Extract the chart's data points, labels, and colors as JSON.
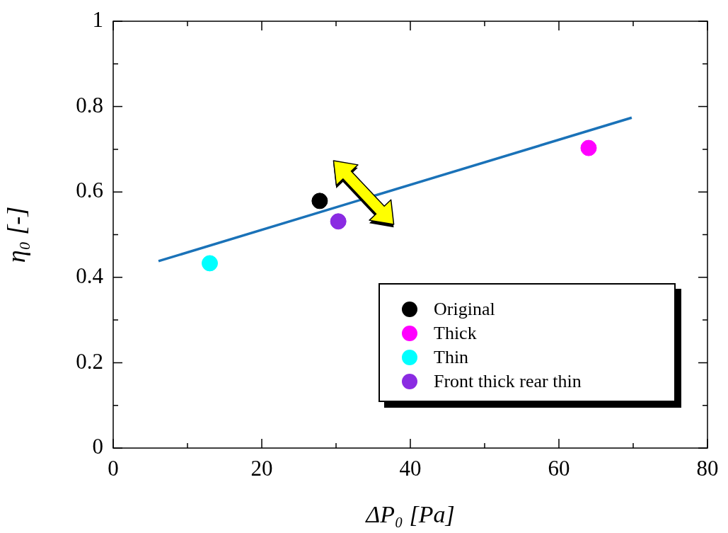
{
  "chart_data": {
    "type": "scatter",
    "xlabel": "ΔP₀ [Pa]",
    "ylabel": "η₀ [-]",
    "xlim": [
      0,
      80
    ],
    "ylim": [
      0,
      1
    ],
    "xticks": [
      0,
      {
        "value": 10,
        "label": null
      },
      20,
      {
        "value": 30,
        "label": null
      },
      40,
      {
        "value": 50,
        "label": null
      },
      60,
      {
        "value": 70,
        "label": null
      },
      80
    ],
    "yticks": [
      0,
      {
        "value": 0.1,
        "label": null
      },
      0.2,
      {
        "value": 0.3,
        "label": null
      },
      0.4,
      {
        "value": 0.5,
        "label": null
      },
      0.6,
      {
        "value": 0.7,
        "label": null
      },
      0.8,
      {
        "value": 0.9,
        "label": null
      },
      1
    ],
    "legend": "bottom right",
    "marker": "circle",
    "series": [
      {
        "name": "Original",
        "color": "#000000",
        "x": [
          27.8
        ],
        "values": [
          0.579
        ]
      },
      {
        "name": "Thick",
        "color": "#ff00ff",
        "x": [
          64
        ],
        "values": [
          0.703
        ]
      },
      {
        "name": "Thin",
        "color": "#00ffff",
        "x": [
          13
        ],
        "values": [
          0.433
        ]
      },
      {
        "name": "Front thick rear thin",
        "color": "#8a2be2",
        "x": [
          30.3
        ],
        "values": [
          0.531
        ]
      },
      {
        "type": "line",
        "color": "#1a72b8",
        "marker": "none",
        "x": [
          6.1,
          69.8
        ],
        "values": [
          0.438,
          0.774
        ]
      }
    ]
  }
}
